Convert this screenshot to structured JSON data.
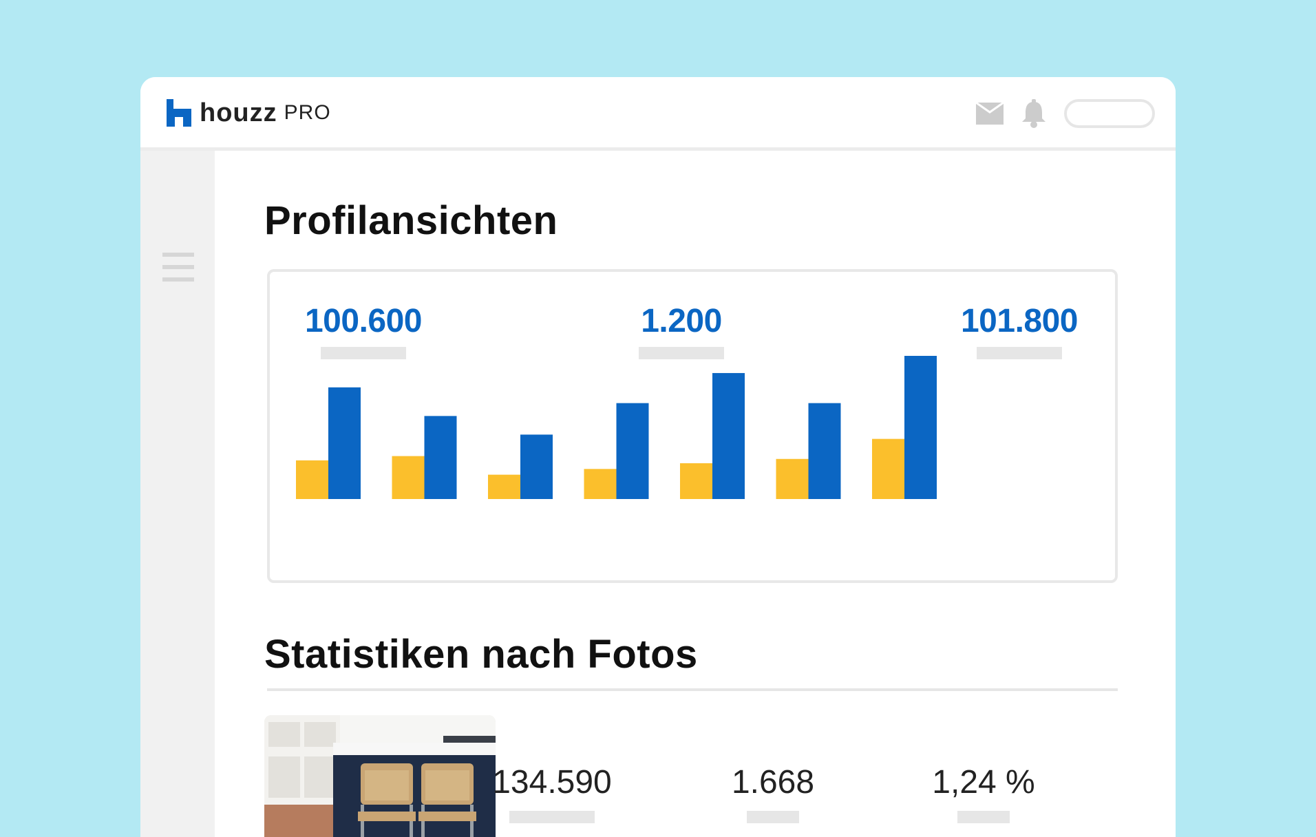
{
  "app": {
    "brand": "houzz",
    "brand_suffix": "PRO"
  },
  "colors": {
    "background": "#b3e9f3",
    "accent_blue": "#0b66c3",
    "accent_yellow": "#fbbf2c",
    "placeholder_gray": "#e6e6e6"
  },
  "header": {
    "icons": [
      "mail-icon",
      "bell-icon"
    ]
  },
  "profile_views": {
    "title": "Profilansichten",
    "stats": [
      "100.600",
      "1.200",
      "101.800"
    ]
  },
  "chart_data": {
    "type": "bar",
    "categories": [
      "",
      "",
      "",
      "",
      "",
      "",
      ""
    ],
    "ylim": [
      0,
      100
    ],
    "grid": false,
    "series": [
      {
        "color": "#fbbf2c",
        "values": [
          27,
          30,
          17,
          21,
          25,
          28,
          42
        ]
      },
      {
        "color": "#0b66c3",
        "values": [
          78,
          58,
          45,
          67,
          88,
          67,
          100
        ]
      }
    ]
  },
  "photo_stats": {
    "title": "Statistiken nach Fotos",
    "row": {
      "values": [
        "134.590",
        "1.668",
        "1,24 %"
      ]
    }
  }
}
